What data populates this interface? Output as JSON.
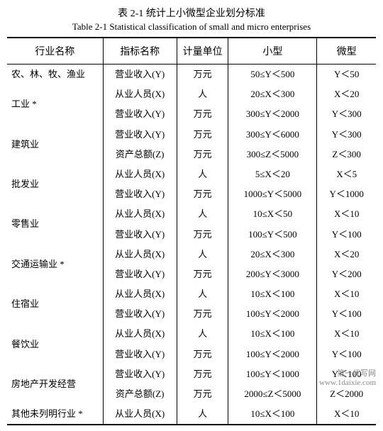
{
  "caption_cn": "表 2-1  统计上小微型企业划分标准",
  "caption_en": "Table 2-1 Statistical classification of small and micro enterprises",
  "columns": [
    "行业名称",
    "指标名称",
    "计量单位",
    "小型",
    "微型"
  ],
  "rows": [
    {
      "industry": "农、林、牧、渔业",
      "industry_rowspan": 1,
      "metric": "营业收入(Y)",
      "unit": "万元",
      "small": "50≤Y＜500",
      "micro": "Y＜50"
    },
    {
      "industry": "工业 *",
      "industry_rowspan": 2,
      "metric": "从业人员(X)",
      "unit": "人",
      "small": "20≤X＜300",
      "micro": "X＜20"
    },
    {
      "industry": "",
      "industry_rowspan": 0,
      "metric": "营业收入(Y)",
      "unit": "万元",
      "small": "300≤Y＜2000",
      "micro": "Y＜300"
    },
    {
      "industry": "建筑业",
      "industry_rowspan": 2,
      "metric": "营业收入(Y)",
      "unit": "万元",
      "small": "300≤Y＜6000",
      "micro": "Y＜300"
    },
    {
      "industry": "",
      "industry_rowspan": 0,
      "metric": "资产总额(Z)",
      "unit": "万元",
      "small": "300≤Z＜5000",
      "micro": "Z＜300"
    },
    {
      "industry": "批发业",
      "industry_rowspan": 2,
      "metric": "从业人员(X)",
      "unit": "人",
      "small": "5≤X＜20",
      "micro": "X＜5"
    },
    {
      "industry": "",
      "industry_rowspan": 0,
      "metric": "营业收入(Y)",
      "unit": "万元",
      "small": "1000≤Y＜5000",
      "micro": "Y＜1000"
    },
    {
      "industry": "零售业",
      "industry_rowspan": 2,
      "metric": "从业人员(X)",
      "unit": "人",
      "small": "10≤X＜50",
      "micro": "X＜10"
    },
    {
      "industry": "",
      "industry_rowspan": 0,
      "metric": "营业收入(Y)",
      "unit": "万元",
      "small": "100≤Y＜500",
      "micro": "Y＜100"
    },
    {
      "industry": "交通运输业 *",
      "industry_rowspan": 2,
      "metric": "从业人员(X)",
      "unit": "人",
      "small": "20≤X＜300",
      "micro": "X＜20"
    },
    {
      "industry": "",
      "industry_rowspan": 0,
      "metric": "营业收入(Y)",
      "unit": "万元",
      "small": "200≤Y＜3000",
      "micro": "Y＜200"
    },
    {
      "industry": "住宿业",
      "industry_rowspan": 2,
      "metric": "从业人员(X)",
      "unit": "人",
      "small": "10≤X＜100",
      "micro": "X＜10"
    },
    {
      "industry": "",
      "industry_rowspan": 0,
      "metric": "营业收入(Y)",
      "unit": "万元",
      "small": "100≤Y＜2000",
      "micro": "Y＜100"
    },
    {
      "industry": "餐饮业",
      "industry_rowspan": 2,
      "metric": "从业人员(X)",
      "unit": "人",
      "small": "10≤X＜100",
      "micro": "X＜10"
    },
    {
      "industry": "",
      "industry_rowspan": 0,
      "metric": "营业收入(Y)",
      "unit": "万元",
      "small": "100≤Y＜2000",
      "micro": "Y＜100"
    },
    {
      "industry": "房地产开发经营",
      "industry_rowspan": 2,
      "metric": "营业收入(Y)",
      "unit": "万元",
      "small": "100≤Y＜1000",
      "micro": "Y＜100"
    },
    {
      "industry": "",
      "industry_rowspan": 0,
      "metric": "资产总额(Z)",
      "unit": "万元",
      "small": "2000≤Z＜5000",
      "micro": "Z＜2000"
    },
    {
      "industry": "其他未列明行业 *",
      "industry_rowspan": 1,
      "metric": "从业人员(X)",
      "unit": "人",
      "small": "10≤X＜100",
      "micro": "X＜10"
    }
  ],
  "watermark_line1": "第一代写网",
  "watermark_line2": "www.1daixie.com"
}
